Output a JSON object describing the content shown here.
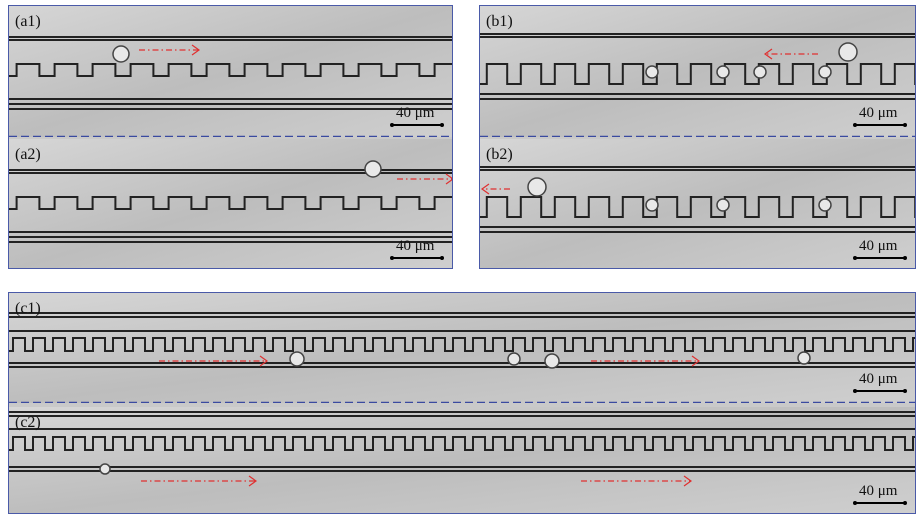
{
  "panels": [
    {
      "label": "(a1)",
      "scale_bar": "40 μm"
    },
    {
      "label": "(a2)",
      "scale_bar": "40 μm"
    },
    {
      "label": "(b1)",
      "scale_bar": "40 μm"
    },
    {
      "label": "(b2)",
      "scale_bar": "40 μm"
    },
    {
      "label": "(c1)",
      "scale_bar": "40 μm"
    },
    {
      "label": "(c2)",
      "scale_bar": "40 μm"
    }
  ]
}
